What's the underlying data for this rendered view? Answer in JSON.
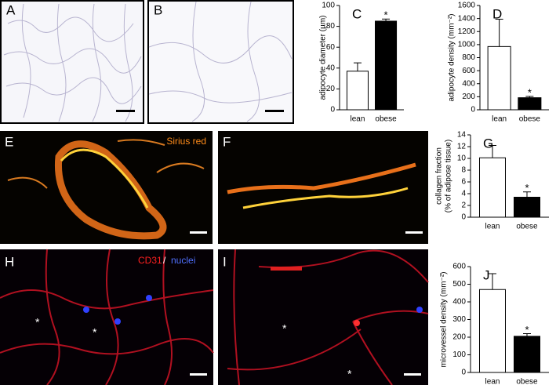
{
  "panels": {
    "A": {
      "label": "A"
    },
    "B": {
      "label": "B"
    },
    "E": {
      "label": "E",
      "stain": "Sirius red"
    },
    "F": {
      "label": "F"
    },
    "H": {
      "label": "H",
      "stain_parts": [
        "CD31",
        "/",
        "nuclei"
      ],
      "asterisks": [
        "*",
        "*"
      ]
    },
    "I": {
      "label": "I",
      "asterisks": [
        "*",
        "*"
      ]
    }
  },
  "chart_data": [
    {
      "type": "bar",
      "panel_label": "C",
      "ylabel": [
        "adipocyte diameter (µm)"
      ],
      "categories": [
        "lean",
        "obese"
      ],
      "values": [
        37,
        85
      ],
      "errors": [
        8,
        2
      ],
      "colors": [
        "#ffffff",
        "#000000"
      ],
      "ylim": [
        0,
        100
      ],
      "yticks": [
        0,
        20,
        40,
        60,
        80,
        100
      ],
      "significance": "*"
    },
    {
      "type": "bar",
      "panel_label": "D",
      "ylabel": [
        "adipocyte density (mm⁻²)"
      ],
      "categories": [
        "lean",
        "obese"
      ],
      "values": [
        970,
        185
      ],
      "errors": [
        420,
        20
      ],
      "colors": [
        "#ffffff",
        "#000000"
      ],
      "ylim": [
        0,
        1600
      ],
      "yticks": [
        0,
        200,
        400,
        600,
        800,
        1000,
        1200,
        1400,
        1600
      ],
      "significance": "*"
    },
    {
      "type": "bar",
      "panel_label": "G",
      "ylabel": [
        "collagen fraction",
        "(% of adipose tissue)"
      ],
      "categories": [
        "lean",
        "obese"
      ],
      "values": [
        10.1,
        3.4
      ],
      "errors": [
        2.1,
        0.9
      ],
      "colors": [
        "#ffffff",
        "#000000"
      ],
      "ylim": [
        0,
        14
      ],
      "yticks": [
        0,
        2,
        4,
        6,
        8,
        10,
        12,
        14
      ],
      "significance": "*"
    },
    {
      "type": "bar",
      "panel_label": "J",
      "ylabel": [
        "microvessel density (mm⁻²)"
      ],
      "categories": [
        "lean",
        "obese"
      ],
      "values": [
        470,
        205
      ],
      "errors": [
        90,
        15
      ],
      "colors": [
        "#ffffff",
        "#000000"
      ],
      "ylim": [
        0,
        600
      ],
      "yticks": [
        0,
        100,
        200,
        300,
        400,
        500,
        600
      ],
      "significance": "*"
    }
  ]
}
